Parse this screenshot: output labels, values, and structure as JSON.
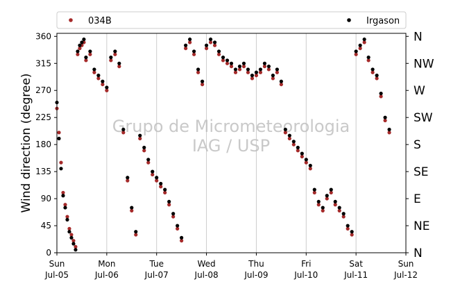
{
  "chart_data": {
    "type": "scatter",
    "ylabel": "Wind direction (degree)",
    "ylim": [
      0,
      365
    ],
    "xlim_days": [
      "2015-07-05",
      "2015-07-12"
    ],
    "y_ticks": [
      "0",
      "45",
      "90",
      "135",
      "180",
      "225",
      "270",
      "315",
      "360"
    ],
    "compass_labels": [
      "N",
      "NE",
      "E",
      "SE",
      "S",
      "SW",
      "W",
      "NW",
      "N"
    ],
    "x_tick_days": [
      "Sun",
      "Mon",
      "Tue",
      "Wed",
      "Thu",
      "Fri",
      "Sat",
      "Sun"
    ],
    "x_tick_dates": [
      "Jul-05",
      "Jul-06",
      "Jul-07",
      "Jul-08",
      "Jul-09",
      "Jul-10",
      "Jul-11",
      "Jul-12"
    ],
    "watermark_line1": "Grupo de Micrometeorologia",
    "watermark_line2": "IAG / USP",
    "grid": "vertical",
    "legend_position": "top",
    "series": [
      {
        "name": "034B",
        "color": "#a52a2a",
        "points": [
          [
            "2015-07-05 00:00",
            240
          ],
          [
            "2015-07-05 01:00",
            200
          ],
          [
            "2015-07-05 02:00",
            150
          ],
          [
            "2015-07-05 03:00",
            100
          ],
          [
            "2015-07-05 04:00",
            80
          ],
          [
            "2015-07-05 05:00",
            60
          ],
          [
            "2015-07-05 06:00",
            40
          ],
          [
            "2015-07-05 07:00",
            30
          ],
          [
            "2015-07-05 08:00",
            20
          ],
          [
            "2015-07-05 09:00",
            10
          ],
          [
            "2015-07-05 10:00",
            330
          ],
          [
            "2015-07-05 11:00",
            340
          ],
          [
            "2015-07-05 12:00",
            345
          ],
          [
            "2015-07-05 13:00",
            350
          ],
          [
            "2015-07-05 14:00",
            320
          ],
          [
            "2015-07-05 16:00",
            330
          ],
          [
            "2015-07-05 18:00",
            300
          ],
          [
            "2015-07-05 20:00",
            290
          ],
          [
            "2015-07-05 22:00",
            280
          ],
          [
            "2015-07-06 00:00",
            270
          ],
          [
            "2015-07-06 02:00",
            320
          ],
          [
            "2015-07-06 04:00",
            330
          ],
          [
            "2015-07-06 06:00",
            310
          ],
          [
            "2015-07-06 08:00",
            200
          ],
          [
            "2015-07-06 10:00",
            120
          ],
          [
            "2015-07-06 12:00",
            70
          ],
          [
            "2015-07-06 14:00",
            30
          ],
          [
            "2015-07-06 16:00",
            190
          ],
          [
            "2015-07-06 18:00",
            170
          ],
          [
            "2015-07-06 20:00",
            150
          ],
          [
            "2015-07-06 22:00",
            130
          ],
          [
            "2015-07-07 00:00",
            120
          ],
          [
            "2015-07-07 02:00",
            110
          ],
          [
            "2015-07-07 04:00",
            100
          ],
          [
            "2015-07-07 06:00",
            80
          ],
          [
            "2015-07-07 08:00",
            60
          ],
          [
            "2015-07-07 10:00",
            40
          ],
          [
            "2015-07-07 12:00",
            20
          ],
          [
            "2015-07-07 14:00",
            340
          ],
          [
            "2015-07-07 16:00",
            350
          ],
          [
            "2015-07-07 18:00",
            330
          ],
          [
            "2015-07-07 20:00",
            300
          ],
          [
            "2015-07-07 22:00",
            280
          ],
          [
            "2015-07-08 00:00",
            340
          ],
          [
            "2015-07-08 02:00",
            350
          ],
          [
            "2015-07-08 04:00",
            345
          ],
          [
            "2015-07-08 06:00",
            330
          ],
          [
            "2015-07-08 08:00",
            320
          ],
          [
            "2015-07-08 10:00",
            315
          ],
          [
            "2015-07-08 12:00",
            310
          ],
          [
            "2015-07-08 14:00",
            300
          ],
          [
            "2015-07-08 16:00",
            305
          ],
          [
            "2015-07-08 18:00",
            310
          ],
          [
            "2015-07-08 20:00",
            300
          ],
          [
            "2015-07-08 22:00",
            290
          ],
          [
            "2015-07-09 00:00",
            295
          ],
          [
            "2015-07-09 02:00",
            300
          ],
          [
            "2015-07-09 04:00",
            310
          ],
          [
            "2015-07-09 06:00",
            305
          ],
          [
            "2015-07-09 08:00",
            290
          ],
          [
            "2015-07-09 10:00",
            300
          ],
          [
            "2015-07-09 12:00",
            280
          ],
          [
            "2015-07-09 14:00",
            200
          ],
          [
            "2015-07-09 16:00",
            190
          ],
          [
            "2015-07-09 18:00",
            180
          ],
          [
            "2015-07-09 20:00",
            170
          ],
          [
            "2015-07-09 22:00",
            160
          ],
          [
            "2015-07-10 00:00",
            150
          ],
          [
            "2015-07-10 02:00",
            140
          ],
          [
            "2015-07-10 04:00",
            100
          ],
          [
            "2015-07-10 06:00",
            80
          ],
          [
            "2015-07-10 08:00",
            70
          ],
          [
            "2015-07-10 10:00",
            90
          ],
          [
            "2015-07-10 12:00",
            100
          ],
          [
            "2015-07-10 14:00",
            80
          ],
          [
            "2015-07-10 16:00",
            70
          ],
          [
            "2015-07-10 18:00",
            60
          ],
          [
            "2015-07-10 20:00",
            40
          ],
          [
            "2015-07-10 22:00",
            30
          ],
          [
            "2015-07-11 00:00",
            330
          ],
          [
            "2015-07-11 02:00",
            340
          ],
          [
            "2015-07-11 04:00",
            350
          ],
          [
            "2015-07-11 06:00",
            320
          ],
          [
            "2015-07-11 08:00",
            300
          ],
          [
            "2015-07-11 10:00",
            290
          ],
          [
            "2015-07-11 12:00",
            260
          ],
          [
            "2015-07-11 14:00",
            220
          ],
          [
            "2015-07-11 16:00",
            200
          ]
        ]
      },
      {
        "name": "Irgason",
        "color": "#000000",
        "points": [
          [
            "2015-07-05 00:00",
            250
          ],
          [
            "2015-07-05 01:00",
            190
          ],
          [
            "2015-07-05 02:00",
            140
          ],
          [
            "2015-07-05 03:00",
            95
          ],
          [
            "2015-07-05 04:00",
            75
          ],
          [
            "2015-07-05 05:00",
            55
          ],
          [
            "2015-07-05 06:00",
            35
          ],
          [
            "2015-07-05 07:00",
            25
          ],
          [
            "2015-07-05 08:00",
            15
          ],
          [
            "2015-07-05 09:00",
            5
          ],
          [
            "2015-07-05 10:00",
            335
          ],
          [
            "2015-07-05 11:00",
            345
          ],
          [
            "2015-07-05 12:00",
            350
          ],
          [
            "2015-07-05 13:00",
            355
          ],
          [
            "2015-07-05 14:00",
            325
          ],
          [
            "2015-07-05 16:00",
            335
          ],
          [
            "2015-07-05 18:00",
            305
          ],
          [
            "2015-07-05 20:00",
            295
          ],
          [
            "2015-07-05 22:00",
            285
          ],
          [
            "2015-07-06 00:00",
            275
          ],
          [
            "2015-07-06 02:00",
            325
          ],
          [
            "2015-07-06 04:00",
            335
          ],
          [
            "2015-07-06 06:00",
            315
          ],
          [
            "2015-07-06 08:00",
            205
          ],
          [
            "2015-07-06 10:00",
            125
          ],
          [
            "2015-07-06 12:00",
            75
          ],
          [
            "2015-07-06 14:00",
            35
          ],
          [
            "2015-07-06 16:00",
            195
          ],
          [
            "2015-07-06 18:00",
            175
          ],
          [
            "2015-07-06 20:00",
            155
          ],
          [
            "2015-07-06 22:00",
            135
          ],
          [
            "2015-07-07 00:00",
            125
          ],
          [
            "2015-07-07 02:00",
            115
          ],
          [
            "2015-07-07 04:00",
            105
          ],
          [
            "2015-07-07 06:00",
            85
          ],
          [
            "2015-07-07 08:00",
            65
          ],
          [
            "2015-07-07 10:00",
            45
          ],
          [
            "2015-07-07 12:00",
            25
          ],
          [
            "2015-07-07 14:00",
            345
          ],
          [
            "2015-07-07 16:00",
            355
          ],
          [
            "2015-07-07 18:00",
            335
          ],
          [
            "2015-07-07 20:00",
            305
          ],
          [
            "2015-07-07 22:00",
            285
          ],
          [
            "2015-07-08 00:00",
            345
          ],
          [
            "2015-07-08 02:00",
            355
          ],
          [
            "2015-07-08 04:00",
            350
          ],
          [
            "2015-07-08 06:00",
            335
          ],
          [
            "2015-07-08 08:00",
            325
          ],
          [
            "2015-07-08 10:00",
            320
          ],
          [
            "2015-07-08 12:00",
            315
          ],
          [
            "2015-07-08 14:00",
            305
          ],
          [
            "2015-07-08 16:00",
            310
          ],
          [
            "2015-07-08 18:00",
            315
          ],
          [
            "2015-07-08 20:00",
            305
          ],
          [
            "2015-07-08 22:00",
            295
          ],
          [
            "2015-07-09 00:00",
            300
          ],
          [
            "2015-07-09 02:00",
            305
          ],
          [
            "2015-07-09 04:00",
            315
          ],
          [
            "2015-07-09 06:00",
            310
          ],
          [
            "2015-07-09 08:00",
            295
          ],
          [
            "2015-07-09 10:00",
            305
          ],
          [
            "2015-07-09 12:00",
            285
          ],
          [
            "2015-07-09 14:00",
            205
          ],
          [
            "2015-07-09 16:00",
            195
          ],
          [
            "2015-07-09 18:00",
            185
          ],
          [
            "2015-07-09 20:00",
            175
          ],
          [
            "2015-07-09 22:00",
            165
          ],
          [
            "2015-07-10 00:00",
            155
          ],
          [
            "2015-07-10 02:00",
            145
          ],
          [
            "2015-07-10 04:00",
            105
          ],
          [
            "2015-07-10 06:00",
            85
          ],
          [
            "2015-07-10 08:00",
            75
          ],
          [
            "2015-07-10 10:00",
            95
          ],
          [
            "2015-07-10 12:00",
            105
          ],
          [
            "2015-07-10 14:00",
            85
          ],
          [
            "2015-07-10 16:00",
            75
          ],
          [
            "2015-07-10 18:00",
            65
          ],
          [
            "2015-07-10 20:00",
            45
          ],
          [
            "2015-07-10 22:00",
            35
          ],
          [
            "2015-07-11 00:00",
            335
          ],
          [
            "2015-07-11 02:00",
            345
          ],
          [
            "2015-07-11 04:00",
            355
          ],
          [
            "2015-07-11 06:00",
            325
          ],
          [
            "2015-07-11 08:00",
            305
          ],
          [
            "2015-07-11 10:00",
            295
          ],
          [
            "2015-07-11 12:00",
            265
          ],
          [
            "2015-07-11 14:00",
            225
          ],
          [
            "2015-07-11 16:00",
            205
          ]
        ]
      }
    ]
  }
}
